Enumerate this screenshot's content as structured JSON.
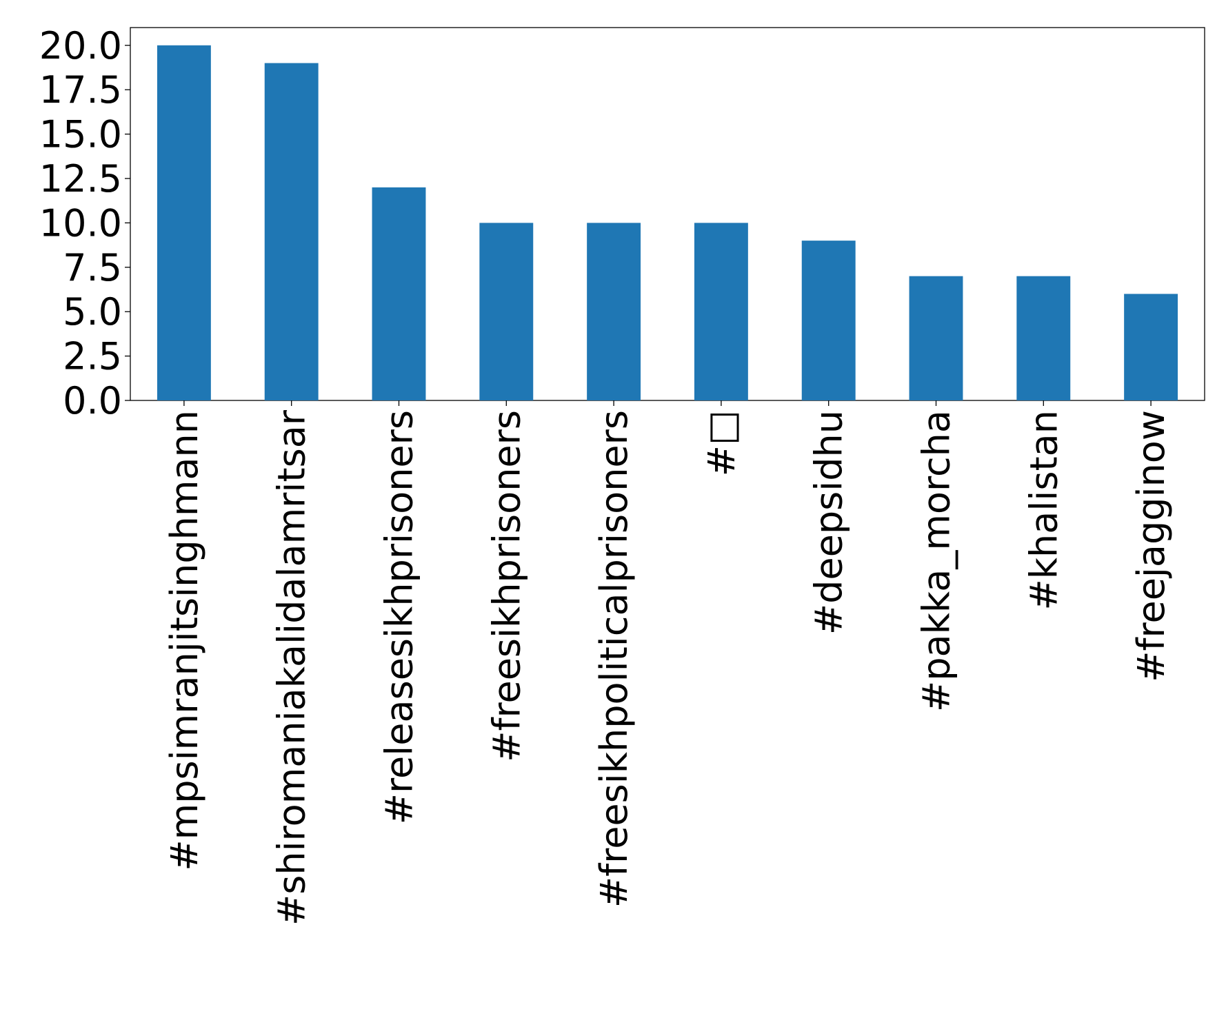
{
  "chart_data": {
    "type": "bar",
    "categories": [
      "#mpsimranjitsinghmann",
      "#shiromaniakalidalamritsar",
      "#releasesikhprisoners",
      "#freesikhprisoners",
      "#freesikhpoliticalprisoners",
      "#□",
      "#deepsidhu",
      "#pakka_morcha",
      "#khalistan",
      "#freejagginow"
    ],
    "values": [
      20,
      19,
      12,
      10,
      10,
      10,
      9,
      7,
      7,
      6
    ],
    "color": "#1f77b4",
    "ylim": [
      0,
      21
    ],
    "yticks": [
      {
        "value": 0,
        "label": "0.0"
      },
      2.5,
      {
        "value": 5,
        "label": "5.0"
      },
      7.5,
      {
        "value": 10,
        "label": "10.0"
      },
      12.5,
      {
        "value": 15,
        "label": "15.0"
      },
      17.5,
      {
        "value": 20,
        "label": "20.0"
      }
    ],
    "grid": false
  }
}
